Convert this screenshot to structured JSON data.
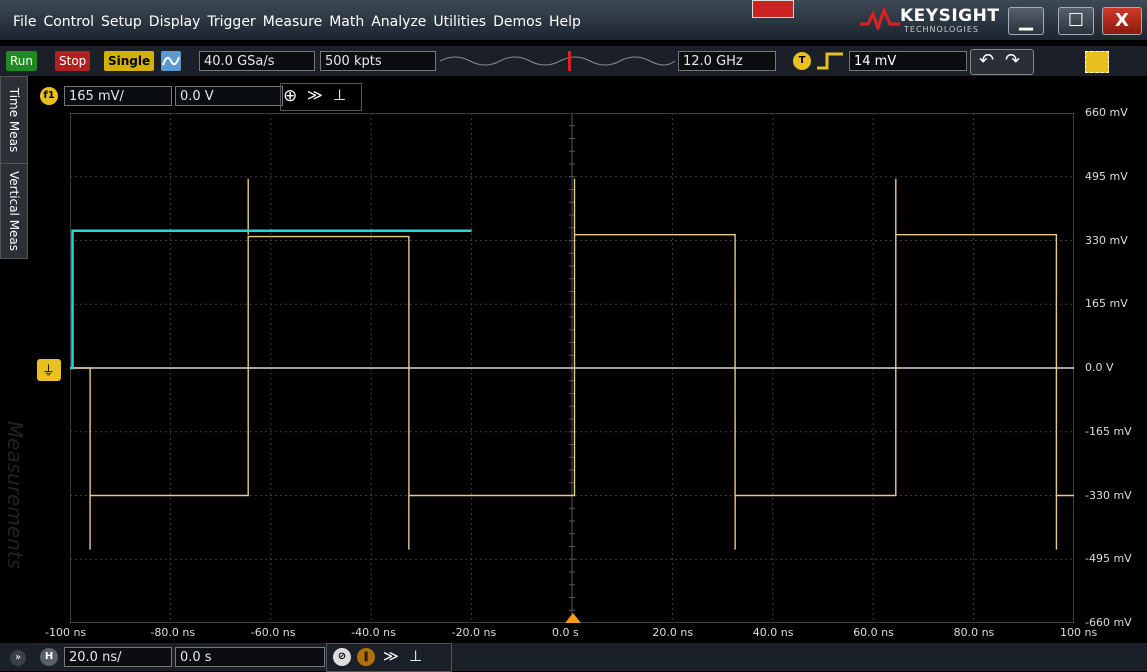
{
  "menu": [
    "File",
    "Control",
    "Setup",
    "Display",
    "Trigger",
    "Measure",
    "Math",
    "Analyze",
    "Utilities",
    "Demos",
    "Help"
  ],
  "brand": {
    "name": "KEYSIGHT",
    "sub": "TECHNOLOGIES"
  },
  "window": {
    "close_label": "X"
  },
  "toolbar": {
    "run_label": "Run",
    "stop_label": "Stop",
    "single_label": "Single",
    "sample_rate": "40.0 GSa/s",
    "memory_depth": "500 kpts",
    "bandwidth": "12.0 GHz",
    "trigger_badge": "T",
    "trigger_level": "14 mV"
  },
  "function": {
    "badge": "f1",
    "scale": "165 mV/",
    "offset": "0.0 V"
  },
  "side_tabs": {
    "time_meas": "Time Meas",
    "vertical_meas": "Vertical Meas",
    "measurements": "Measurements"
  },
  "timebase": {
    "badge": "H",
    "scale": "20.0 ns/",
    "position": "0.0 s"
  },
  "colors": {
    "ch1": "#e6c98b",
    "f1": "#27d6d8",
    "grid": "#4a4a4a",
    "menubar": "#2a3440",
    "accent_orange": "#f39c12"
  },
  "chart_data": {
    "type": "line",
    "y_tick_labels": [
      "660 mV",
      "495 mV",
      "330 mV",
      "165 mV",
      "0.0 V",
      "-165 mV",
      "-330 mV",
      "-495 mV",
      "-660 mV"
    ],
    "x_tick_labels": [
      "-100 ns",
      "-80.0 ns",
      "-60.0 ns",
      "-40.0 ns",
      "-20.0 ns",
      "0.0 s",
      "20.0 ns",
      "40.0 ns",
      "60.0 ns",
      "80.0 ns",
      "100 ns"
    ],
    "xlim": [
      -100,
      100
    ],
    "ylim": [
      -660,
      660
    ],
    "x_unit": "ns",
    "y_unit": "mV",
    "grid": true,
    "series": [
      {
        "color": "#e6c98b",
        "x": [
          -100,
          -96,
          -96,
          -64.5,
          -64.5,
          -32.5,
          -32.5,
          0.5,
          0.5,
          32.5,
          32.5,
          64.5,
          64.5,
          96.5,
          96.5,
          100
        ],
        "y": [
          0,
          0,
          -330,
          -330,
          340,
          340,
          -330,
          -330,
          345,
          345,
          -330,
          -330,
          345,
          345,
          -330,
          -330
        ],
        "spikes": [
          {
            "x": -96,
            "y": -470
          },
          {
            "x": -64.5,
            "y": 490
          },
          {
            "x": -32.5,
            "y": -470
          },
          {
            "x": 0.5,
            "y": 490
          },
          {
            "x": 32.5,
            "y": -470
          },
          {
            "x": 64.5,
            "y": 490
          },
          {
            "x": 96.5,
            "y": -470
          }
        ]
      },
      {
        "color": "#27d6d8",
        "x": [
          -100,
          -99.5,
          -99.5,
          -20
        ],
        "y": [
          0,
          0,
          355,
          355
        ]
      }
    ]
  }
}
